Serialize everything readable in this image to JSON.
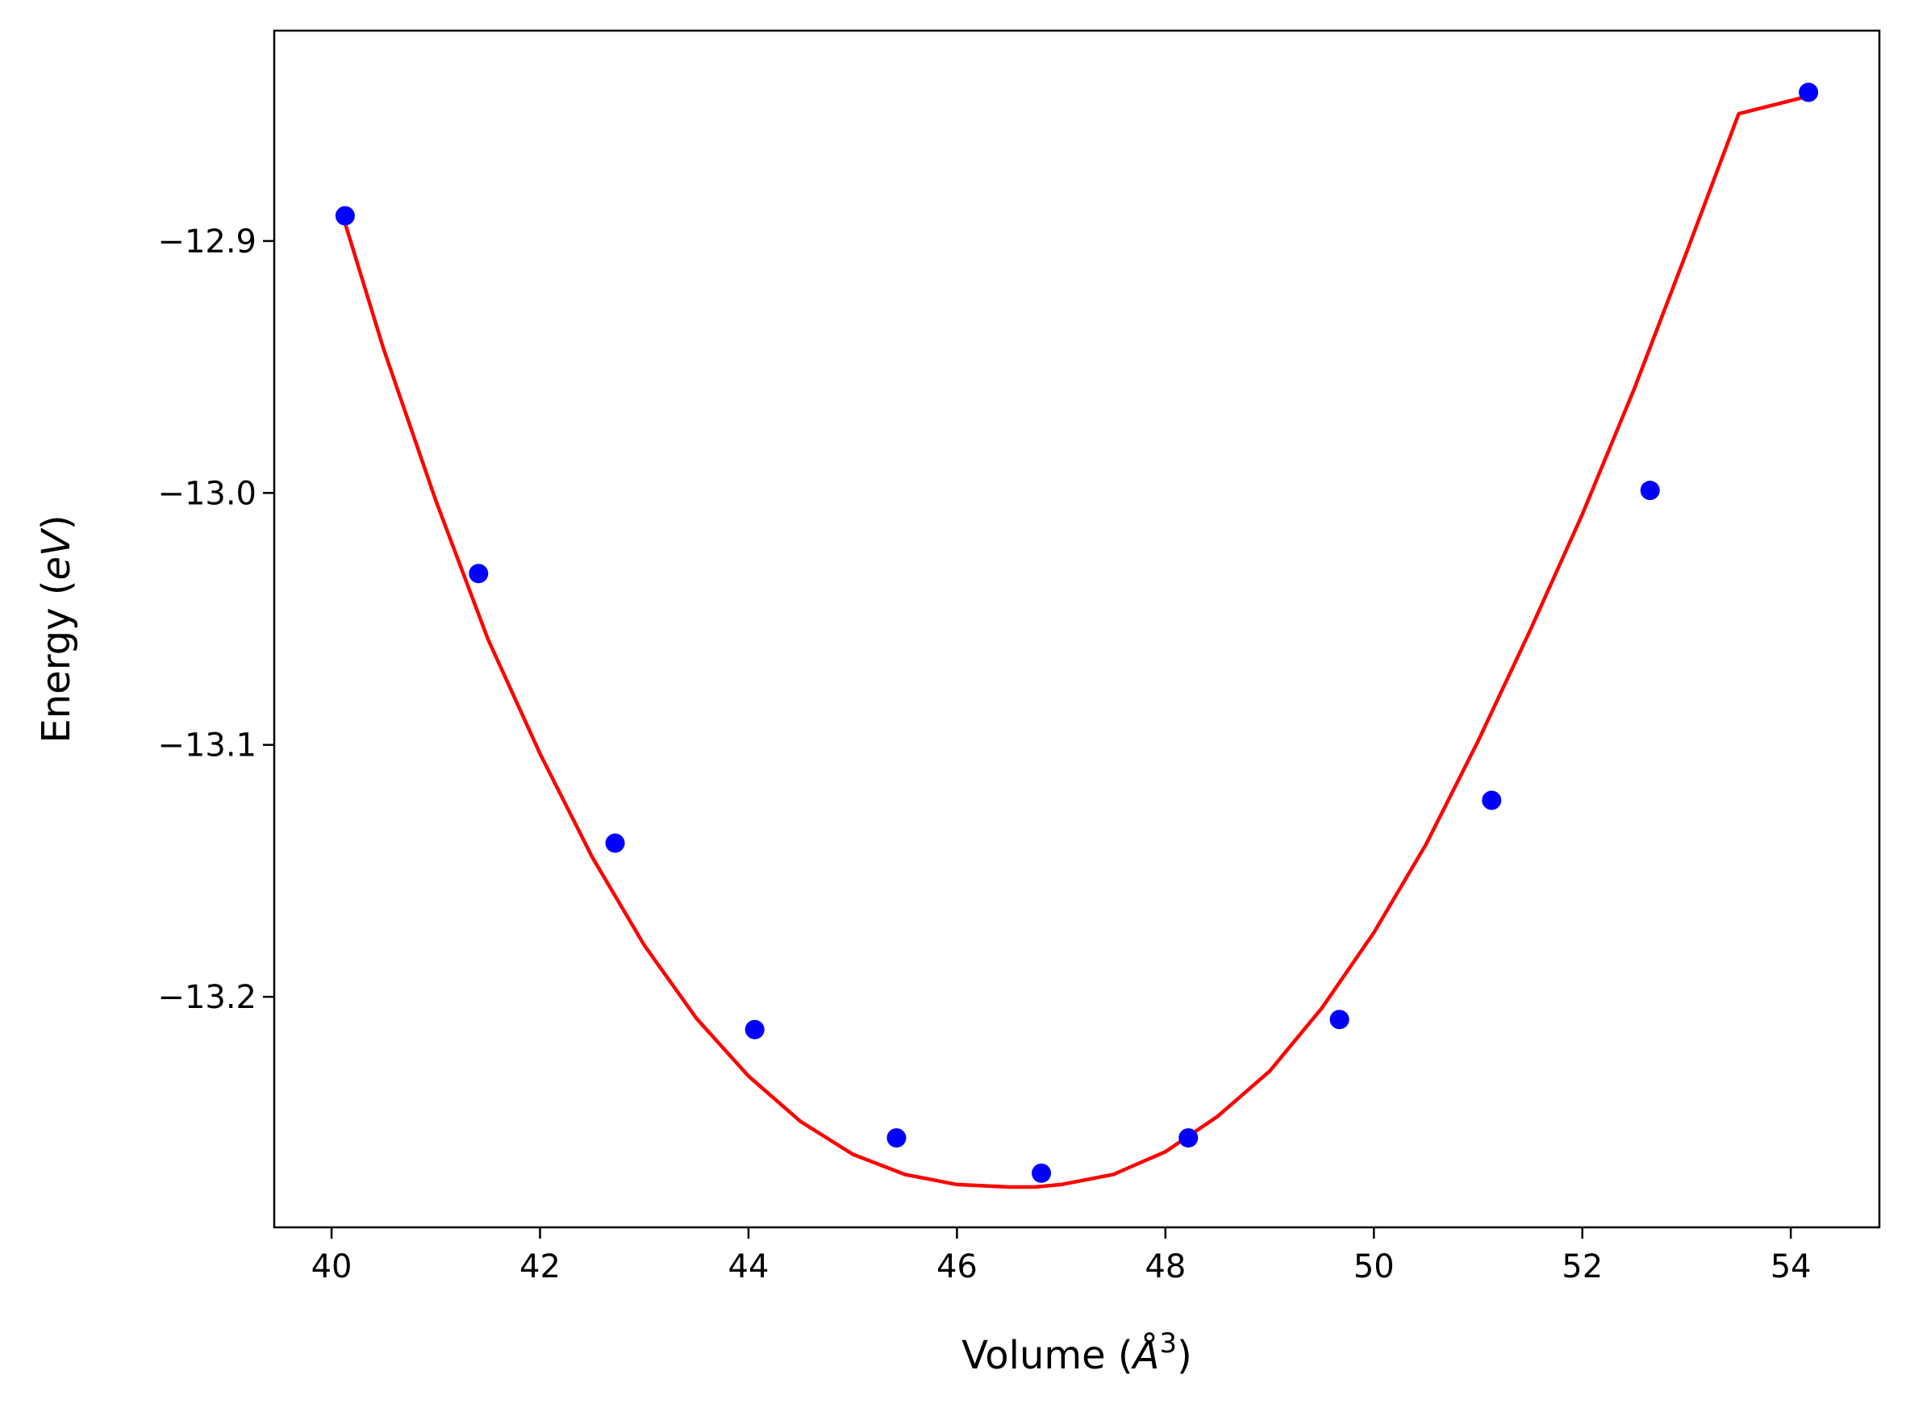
{
  "chart_data": {
    "type": "scatter",
    "title": "",
    "xlabel": {
      "prefix": "Volume (",
      "symbol": "Å",
      "superscript": "3",
      "suffix": ")"
    },
    "ylabel": {
      "prefix": "Energy (",
      "symbol": "eV",
      "suffix": ")"
    },
    "xlim": [
      39.45,
      54.85
    ],
    "ylim": [
      -13.2915,
      -12.8165
    ],
    "x_ticks": [
      40,
      42,
      44,
      46,
      48,
      50,
      52,
      54
    ],
    "x_tick_labels": [
      "40",
      "42",
      "44",
      "46",
      "48",
      "50",
      "52",
      "54"
    ],
    "y_ticks": [
      -12.9,
      -13.0,
      -13.1,
      -13.2
    ],
    "y_tick_labels": [
      "−12.9",
      "−13.0",
      "−13.1",
      "−13.2"
    ],
    "grid": false,
    "legend": "none",
    "series": [
      {
        "kind": "points",
        "color": "#0000ff",
        "x": [
          40.13,
          41.41,
          42.72,
          44.06,
          45.42,
          46.81,
          48.22,
          49.67,
          51.13,
          52.65,
          54.17
        ],
        "y": [
          -12.89,
          -13.032,
          -13.139,
          -13.213,
          -13.256,
          -13.27,
          -13.256,
          -13.209,
          -13.122,
          -12.999,
          -12.841
        ]
      },
      {
        "kind": "fit-curve",
        "color": "#ff0000",
        "x": [
          40.13,
          40.5,
          41.0,
          41.5,
          42.0,
          42.5,
          43.0,
          43.5,
          44.0,
          44.5,
          45.0,
          45.5,
          46.0,
          46.5,
          46.75,
          47.0,
          47.5,
          48.0,
          48.5,
          49.0,
          49.5,
          50.0,
          50.5,
          51.0,
          51.5,
          52.0,
          52.5,
          53.0,
          53.5,
          54.17
        ],
        "y": [
          -12.893,
          -12.943,
          -13.003,
          -13.058,
          -13.1035,
          -13.1445,
          -13.1795,
          -13.2085,
          -13.2315,
          -13.2495,
          -13.2625,
          -13.2705,
          -13.2745,
          -13.2755,
          -13.2755,
          -13.2745,
          -13.2705,
          -13.2615,
          -13.2475,
          -13.2295,
          -13.2045,
          -13.1745,
          -13.1395,
          -13.0985,
          -13.0545,
          -13.0085,
          -12.9585,
          -12.9045,
          -12.8495,
          -12.8425
        ]
      }
    ]
  }
}
